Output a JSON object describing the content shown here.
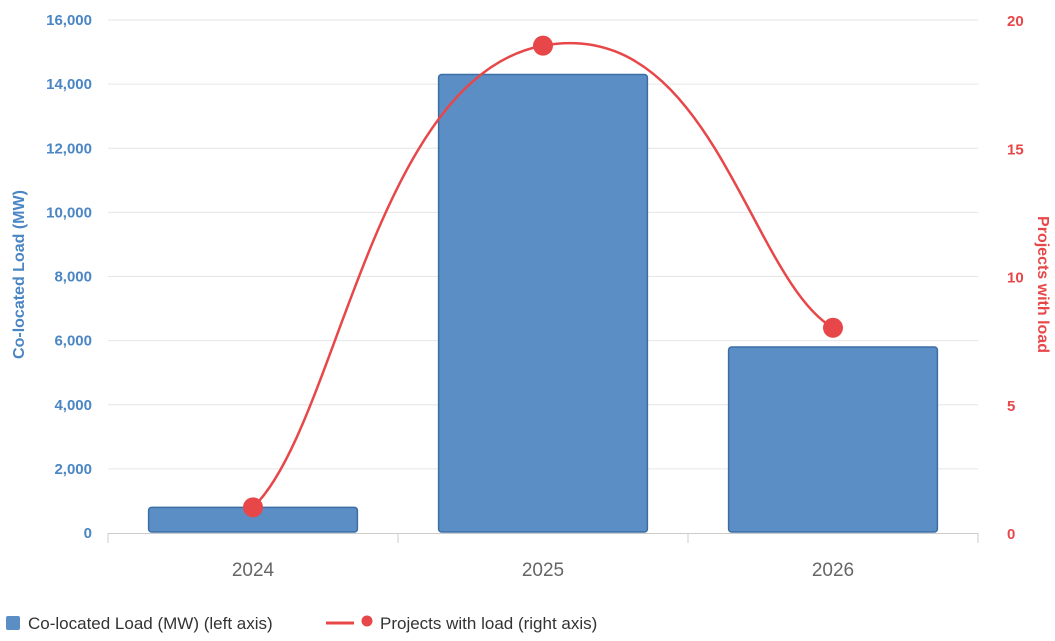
{
  "chart_data": {
    "type": "bar",
    "categories": [
      "2024",
      "2025",
      "2026"
    ],
    "series": [
      {
        "name": "Co-located Load (MW) (left axis)",
        "type": "bar",
        "axis": "left",
        "values": [
          800,
          14300,
          5800
        ]
      },
      {
        "name": "Projects with load (right axis)",
        "type": "line",
        "axis": "right",
        "smooth": true,
        "values": [
          1,
          19,
          8
        ]
      }
    ],
    "title": "",
    "xlabel": "",
    "ylabel": "Co-located Load (MW)",
    "ylabel_right": "Projects with load",
    "ylim": [
      0,
      16000
    ],
    "ylim_right": [
      0,
      20
    ],
    "yticks": [
      "0",
      "2,000",
      "4,000",
      "6,000",
      "8,000",
      "10,000",
      "12,000",
      "14,000",
      "16,000"
    ],
    "yticks_right": [
      "0",
      "5",
      "10",
      "15",
      "20"
    ],
    "grid": true,
    "legend_position": "bottom-left",
    "colors": {
      "bar": "#5b8ec4",
      "bar_border": "#3a6ea5",
      "line": "#e8474a",
      "left_axis_text": "#4a85c4",
      "right_axis_text": "#e8474a",
      "x_tick_text": "#666666",
      "grid": "#e6e6e6"
    }
  }
}
